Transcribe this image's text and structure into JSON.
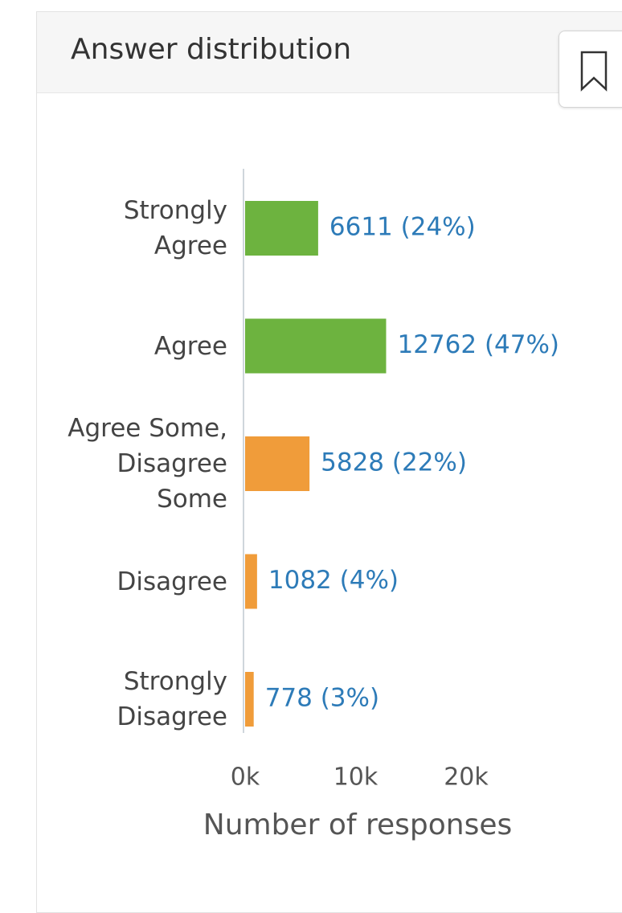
{
  "chart_data": {
    "type": "hbar",
    "title": "Answer distribution",
    "categories": [
      "Strongly Agree",
      "Agree",
      "Agree Some, Disagree Some",
      "Disagree",
      "Strongly Disagree"
    ],
    "values": [
      6611,
      12762,
      5828,
      1082,
      778
    ],
    "value_labels": [
      "6611 (24%)",
      "12762 (47%)",
      "5828 (22%)",
      "1082 (4%)",
      "778 (3%)"
    ],
    "colors": [
      "#6db33f",
      "#6db33f",
      "#f09c3a",
      "#f09c3a",
      "#f09c3a"
    ],
    "xlabel": "Number of responses",
    "xlim": [
      0,
      20000
    ],
    "xticks": [
      {
        "value": 0,
        "label": "0k"
      },
      {
        "value": 10000,
        "label": "10k"
      },
      {
        "value": 20000,
        "label": "20k"
      }
    ],
    "grid": false
  }
}
